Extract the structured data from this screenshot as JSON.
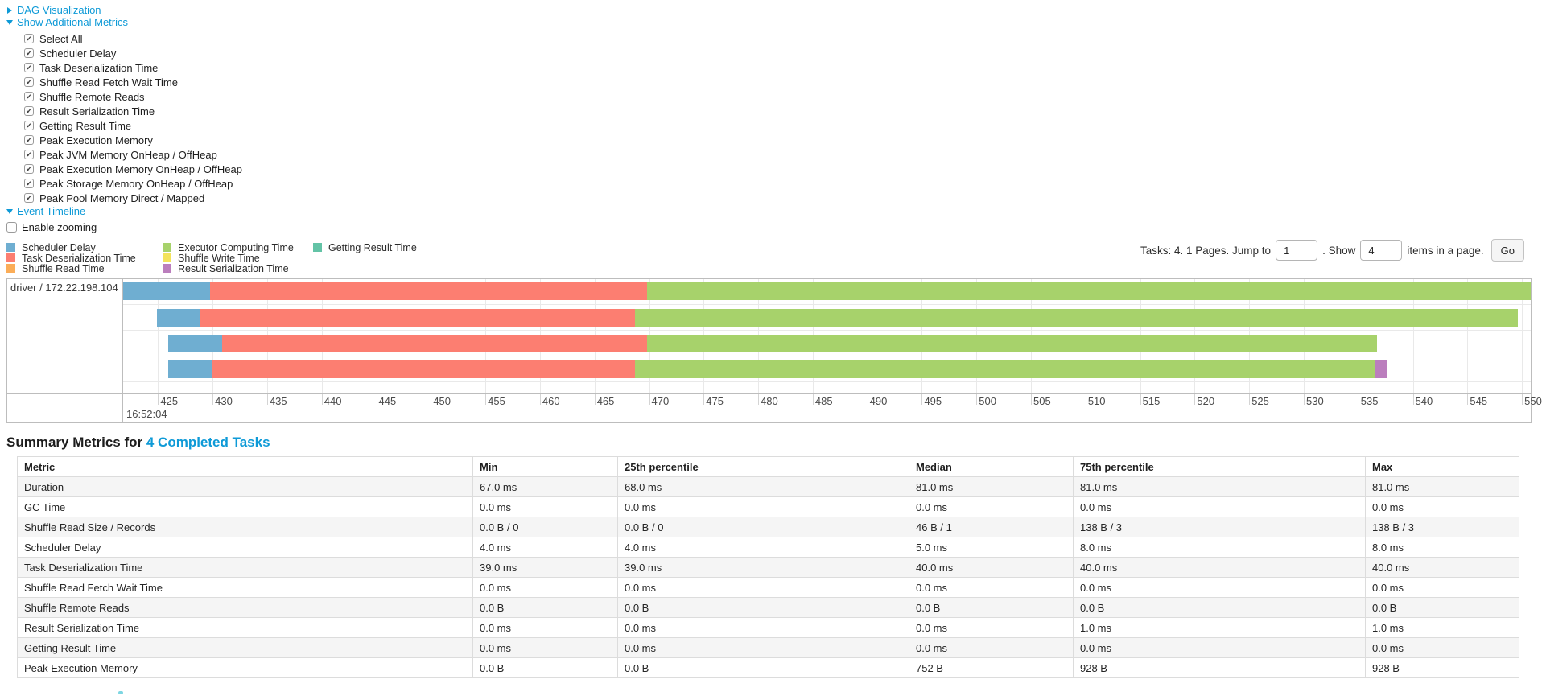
{
  "nav": {
    "dag_visualization": "DAG Visualization",
    "show_additional_metrics": "Show Additional Metrics",
    "event_timeline": "Event Timeline"
  },
  "metrics_checkboxes": [
    {
      "label": "Select All",
      "checked": true
    },
    {
      "label": "Scheduler Delay",
      "checked": true
    },
    {
      "label": "Task Deserialization Time",
      "checked": true
    },
    {
      "label": "Shuffle Read Fetch Wait Time",
      "checked": true
    },
    {
      "label": "Shuffle Remote Reads",
      "checked": true
    },
    {
      "label": "Result Serialization Time",
      "checked": true
    },
    {
      "label": "Getting Result Time",
      "checked": true
    },
    {
      "label": "Peak Execution Memory",
      "checked": true
    },
    {
      "label": "Peak JVM Memory OnHeap / OffHeap",
      "checked": true
    },
    {
      "label": "Peak Execution Memory OnHeap / OffHeap",
      "checked": true
    },
    {
      "label": "Peak Storage Memory OnHeap / OffHeap",
      "checked": true
    },
    {
      "label": "Peak Pool Memory Direct / Mapped",
      "checked": true
    }
  ],
  "pagination": {
    "jump_label": "Tasks: 4. 1 Pages. Jump to",
    "jump_value": "1",
    "show_label": ". Show",
    "show_value": "4",
    "items_label": "items in a page.",
    "go_label": "Go"
  },
  "timeline": {
    "enable_zooming_label": "Enable zooming",
    "group_label": "driver / 172.22.198.104",
    "colors": {
      "scheduler_delay": "#6FAED1",
      "task_deserialization": "#FC7E71",
      "shuffle_read": "#FBAD58",
      "executor_computing": "#A7D26B",
      "shuffle_write": "#F3E35B",
      "result_serialization": "#BB7EBD",
      "getting_result": "#63C3A6"
    },
    "legend_columns": [
      [
        {
          "label": "Scheduler Delay",
          "color_key": "scheduler_delay"
        },
        {
          "label": "Task Deserialization Time",
          "color_key": "task_deserialization"
        },
        {
          "label": "Shuffle Read Time",
          "color_key": "shuffle_read"
        }
      ],
      [
        {
          "label": "Executor Computing Time",
          "color_key": "executor_computing"
        },
        {
          "label": "Shuffle Write Time",
          "color_key": "shuffle_write"
        },
        {
          "label": "Result Serialization Time",
          "color_key": "result_serialization"
        }
      ],
      [
        {
          "label": "Getting Result Time",
          "color_key": "getting_result"
        }
      ]
    ],
    "axis": {
      "domain_start": 421.8,
      "domain_end": 550.8,
      "tick_start": 425,
      "tick_end": 550,
      "tick_step": 5,
      "major_label": "16:52:04"
    },
    "rows": [
      {
        "segments": [
          {
            "color_key": "scheduler_delay",
            "start": 421.8,
            "end": 429.8
          },
          {
            "color_key": "task_deserialization",
            "start": 429.8,
            "end": 469.8
          },
          {
            "color_key": "executor_computing",
            "start": 469.8,
            "end": 550.8
          }
        ]
      },
      {
        "segments": [
          {
            "color_key": "scheduler_delay",
            "start": 424.9,
            "end": 428.9
          },
          {
            "color_key": "task_deserialization",
            "start": 428.9,
            "end": 468.7
          },
          {
            "color_key": "executor_computing",
            "start": 468.7,
            "end": 549.6
          }
        ]
      },
      {
        "segments": [
          {
            "color_key": "scheduler_delay",
            "start": 425.9,
            "end": 430.9
          },
          {
            "color_key": "task_deserialization",
            "start": 430.9,
            "end": 469.8
          },
          {
            "color_key": "executor_computing",
            "start": 469.8,
            "end": 536.7
          }
        ]
      },
      {
        "segments": [
          {
            "color_key": "scheduler_delay",
            "start": 425.9,
            "end": 429.9
          },
          {
            "color_key": "task_deserialization",
            "start": 429.9,
            "end": 468.7
          },
          {
            "color_key": "executor_computing",
            "start": 468.7,
            "end": 536.5
          },
          {
            "color_key": "result_serialization",
            "start": 536.5,
            "end": 537.6
          }
        ]
      }
    ]
  },
  "summary": {
    "title_prefix": "Summary Metrics for",
    "title_link": "4 Completed Tasks",
    "table": {
      "headers": [
        "Metric",
        "Min",
        "25th percentile",
        "Median",
        "75th percentile",
        "Max"
      ],
      "rows": [
        {
          "metric": "Duration",
          "values": [
            "67.0 ms",
            "68.0 ms",
            "81.0 ms",
            "81.0 ms",
            "81.0 ms"
          ]
        },
        {
          "metric": "GC Time",
          "values": [
            "0.0 ms",
            "0.0 ms",
            "0.0 ms",
            "0.0 ms",
            "0.0 ms"
          ]
        },
        {
          "metric": "Shuffle Read Size / Records",
          "values": [
            "0.0 B / 0",
            "0.0 B / 0",
            "46 B / 1",
            "138 B / 3",
            "138 B / 3"
          ]
        },
        {
          "metric": "Scheduler Delay",
          "values": [
            "4.0 ms",
            "4.0 ms",
            "5.0 ms",
            "8.0 ms",
            "8.0 ms"
          ]
        },
        {
          "metric": "Task Deserialization Time",
          "values": [
            "39.0 ms",
            "39.0 ms",
            "40.0 ms",
            "40.0 ms",
            "40.0 ms"
          ]
        },
        {
          "metric": "Shuffle Read Fetch Wait Time",
          "values": [
            "0.0 ms",
            "0.0 ms",
            "0.0 ms",
            "0.0 ms",
            "0.0 ms"
          ]
        },
        {
          "metric": "Shuffle Remote Reads",
          "values": [
            "0.0 B",
            "0.0 B",
            "0.0 B",
            "0.0 B",
            "0.0 B"
          ]
        },
        {
          "metric": "Result Serialization Time",
          "values": [
            "0.0 ms",
            "0.0 ms",
            "0.0 ms",
            "1.0 ms",
            "1.0 ms"
          ]
        },
        {
          "metric": "Getting Result Time",
          "values": [
            "0.0 ms",
            "0.0 ms",
            "0.0 ms",
            "0.0 ms",
            "0.0 ms"
          ]
        },
        {
          "metric": "Peak Execution Memory",
          "values": [
            "0.0 B",
            "0.0 B",
            "752 B",
            "928 B",
            "928 B"
          ]
        }
      ]
    }
  }
}
